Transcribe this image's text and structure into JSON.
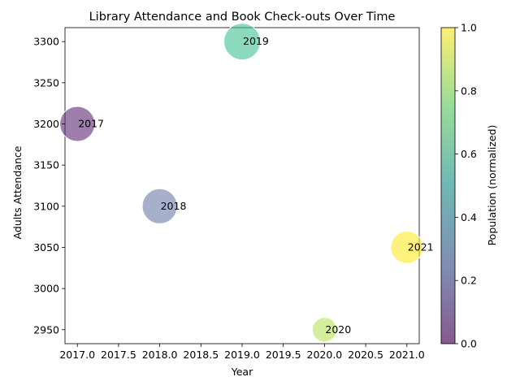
{
  "chart_data": {
    "type": "scatter",
    "title": "Library Attendance and Book Check-outs Over Time",
    "xlabel": "Year",
    "ylabel": "Adults Attendance",
    "xlim": [
      2016.85,
      2021.15
    ],
    "ylim": [
      2933,
      3317
    ],
    "x_ticks": [
      2017.0,
      2017.5,
      2018.0,
      2018.5,
      2019.0,
      2019.5,
      2020.0,
      2020.5,
      2021.0
    ],
    "x_tick_labels": [
      "2017.0",
      "2017.5",
      "2018.0",
      "2018.5",
      "2019.0",
      "2019.5",
      "2020.0",
      "2020.5",
      "2021.0"
    ],
    "y_ticks": [
      2950,
      3000,
      3050,
      3100,
      3150,
      3200,
      3250,
      3300
    ],
    "y_tick_labels": [
      "2950",
      "3000",
      "3050",
      "3100",
      "3150",
      "3200",
      "3250",
      "3300"
    ],
    "grid": false,
    "points": [
      {
        "label": "2017",
        "x": 2017,
        "y": 3200,
        "size_relative": 0.92,
        "color_value": 0.0,
        "color": "#5e2a73"
      },
      {
        "label": "2018",
        "x": 2018,
        "y": 3100,
        "size_relative": 0.92,
        "color_value": 0.25,
        "color": "#6b7ba6"
      },
      {
        "label": "2019",
        "x": 2019,
        "y": 3300,
        "size_relative": 1.0,
        "color_value": 0.6,
        "color": "#3fc192"
      },
      {
        "label": "2020",
        "x": 2020,
        "y": 2950,
        "size_relative": 0.45,
        "color_value": 0.85,
        "color": "#b8e35a"
      },
      {
        "label": "2021",
        "x": 2021,
        "y": 3050,
        "size_relative": 0.78,
        "color_value": 1.0,
        "color": "#fde725"
      }
    ],
    "point_alpha": 0.6,
    "colorbar": {
      "label": "Population (normalized)",
      "range": [
        0.0,
        1.0
      ],
      "ticks": [
        0.0,
        0.2,
        0.4,
        0.6,
        0.8,
        1.0
      ],
      "tick_labels": [
        "0.0",
        "0.2",
        "0.4",
        "0.6",
        "0.8",
        "1.0"
      ],
      "colormap_stops": [
        "#440154",
        "#3b528b",
        "#21918c",
        "#5ec962",
        "#fde725"
      ]
    }
  }
}
